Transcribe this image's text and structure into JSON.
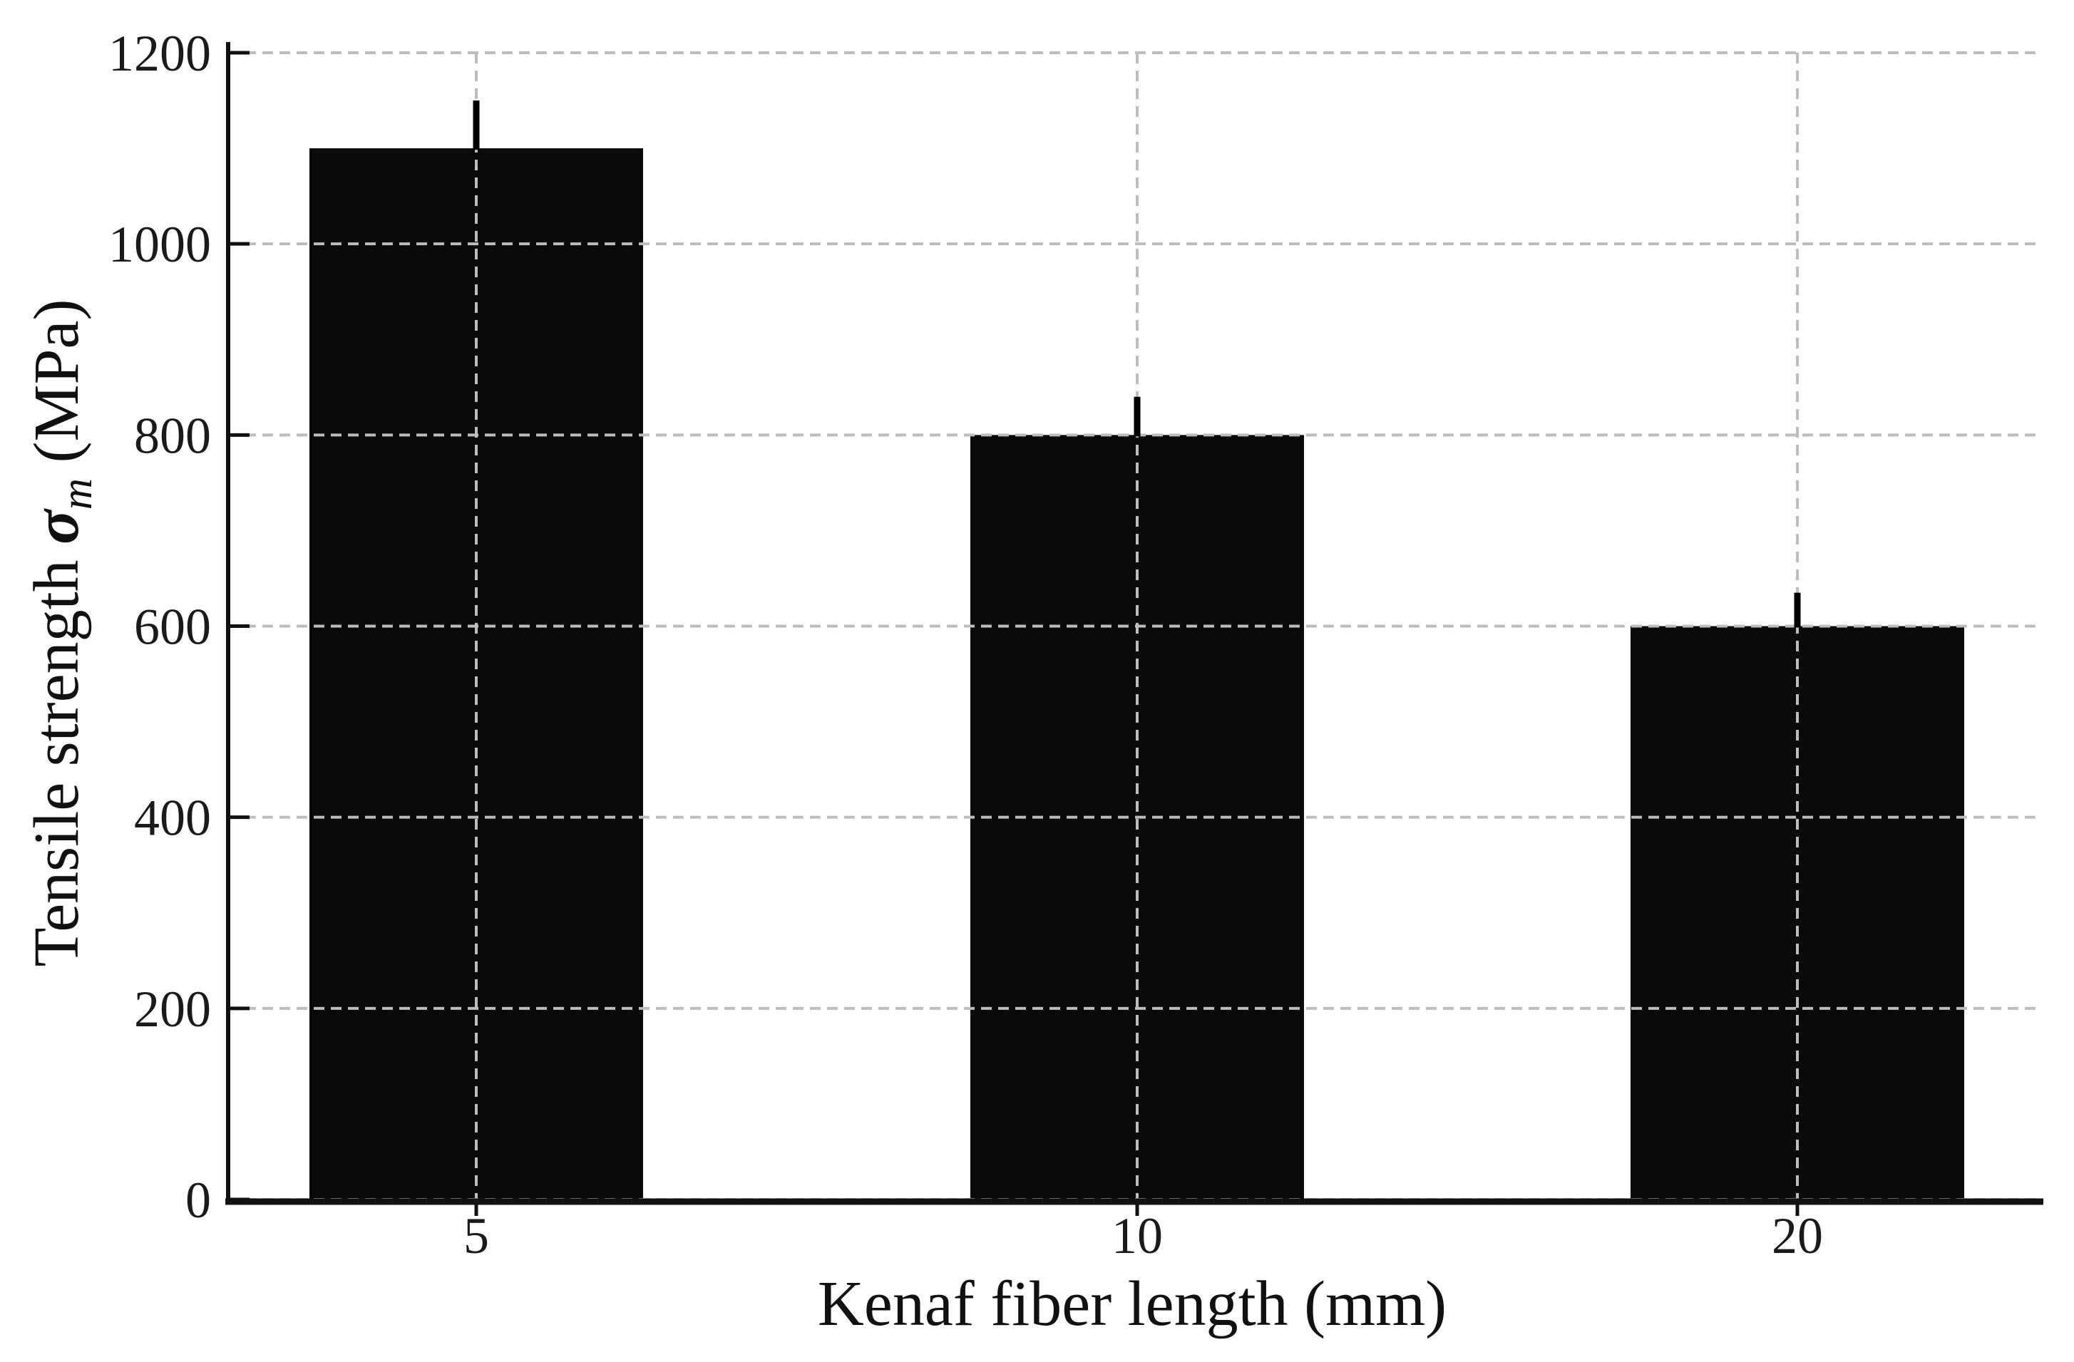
{
  "figure": {
    "background": "#ffffff"
  },
  "chart_data": {
    "type": "bar",
    "title": "",
    "xlabel": "Kenaf fiber length (mm)",
    "ylabel": "Tensile strength σm (MPa)",
    "ylabel_parts": {
      "prefix": "Tensile strength",
      "symbol": "σ",
      "subscript": "m",
      "suffix": "(MPa)"
    },
    "categories": [
      "5",
      "10",
      "20"
    ],
    "series": [
      {
        "name": "Tensile strength",
        "values": [
          1100,
          800,
          600
        ],
        "errors_plus": [
          50,
          40,
          35
        ]
      }
    ],
    "ylim": [
      0,
      1200
    ],
    "ytick_values": [
      0,
      200,
      400,
      600,
      800,
      1000,
      1200
    ],
    "ytick_labels": [
      "0",
      "200",
      "400",
      "600",
      "800",
      "1000",
      "1200"
    ],
    "grid": {
      "show": true,
      "style": "dashed",
      "which": "both",
      "over_bars": true
    },
    "legend": {
      "show": false
    },
    "colors": {
      "bar": "#0a0a0a",
      "grid": "#bdbdbd",
      "axis": "#111111",
      "error_bar": "#000000",
      "tick_text": "#1a1a1a"
    }
  }
}
